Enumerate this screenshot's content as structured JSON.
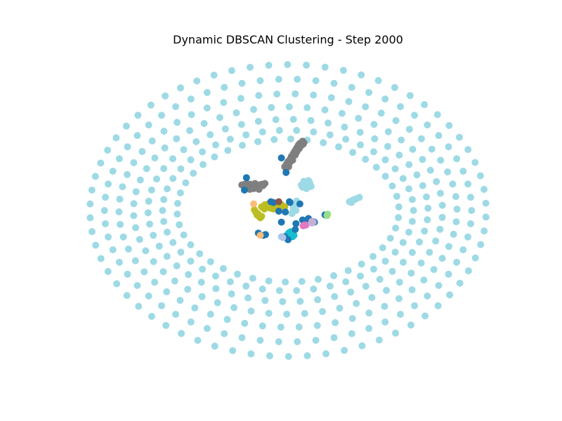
{
  "chart_data": {
    "type": "scatter",
    "title": "Dynamic DBSCAN Clustering - Step 2000",
    "xlabel": "",
    "ylabel": "",
    "axes_visible": false,
    "grid": false,
    "legend": "none",
    "series": [
      {
        "cluster": "background",
        "color": "#9edae5",
        "generator": "rings",
        "rings": [
          {
            "rx": 3.0,
            "ry": 2.0,
            "n": 66,
            "phase": 0.05
          },
          {
            "rx": 2.78,
            "ry": 1.8,
            "n": 62,
            "phase": 0.0
          },
          {
            "rx": 2.56,
            "ry": 1.6,
            "n": 58,
            "phase": 0.12
          },
          {
            "rx": 2.34,
            "ry": 1.42,
            "n": 54,
            "phase": 0.05
          },
          {
            "rx": 2.12,
            "ry": 1.25,
            "n": 50,
            "phase": 0.15
          },
          {
            "rx": 1.9,
            "ry": 1.1,
            "n": 46,
            "phase": 0.0
          },
          {
            "rx": 1.68,
            "ry": 0.98,
            "n": 42,
            "phase": 0.2
          }
        ]
      },
      {
        "cluster": "light-blue-upper",
        "color": "#9edae5",
        "points": [
          [
            0.2,
            0.35
          ],
          [
            0.25,
            0.38
          ],
          [
            0.3,
            0.36
          ],
          [
            0.22,
            0.32
          ],
          [
            0.28,
            0.3
          ],
          [
            0.35,
            0.33
          ],
          [
            0.24,
            0.4
          ],
          [
            0.31,
            0.41
          ],
          [
            0.26,
            0.34
          ],
          [
            0.33,
            0.38
          ]
        ]
      },
      {
        "cluster": "light-blue-mid",
        "color": "#9edae5",
        "points": [
          [
            0.1,
            0.1
          ],
          [
            0.13,
            0.13
          ],
          [
            0.08,
            0.04
          ],
          [
            0.12,
            0.0
          ],
          [
            0.06,
            -0.04
          ],
          [
            0.1,
            0.06
          ],
          [
            0.14,
            0.09
          ],
          [
            0.07,
            -0.02
          ],
          [
            0.11,
            0.03
          ],
          [
            0.09,
            0.08
          ]
        ]
      },
      {
        "cluster": "light-blue-right",
        "color": "#9edae5",
        "points": [
          [
            0.93,
            0.12
          ],
          [
            0.98,
            0.14
          ],
          [
            1.03,
            0.16
          ],
          [
            1.08,
            0.18
          ],
          [
            0.96,
            0.11
          ],
          [
            1.01,
            0.15
          ]
        ]
      },
      {
        "cluster": "gray-diagonal",
        "color": "#7f7f7f",
        "points": [
          [
            -0.05,
            0.6
          ],
          [
            0.0,
            0.67
          ],
          [
            0.05,
            0.74
          ],
          [
            0.1,
            0.81
          ],
          [
            0.14,
            0.87
          ],
          [
            0.18,
            0.92
          ],
          [
            0.22,
            0.95
          ],
          [
            -0.02,
            0.64
          ],
          [
            0.03,
            0.7
          ],
          [
            0.08,
            0.78
          ],
          [
            0.12,
            0.84
          ],
          [
            0.16,
            0.9
          ],
          [
            0.2,
            0.93
          ],
          [
            0.01,
            0.6
          ],
          [
            0.06,
            0.71
          ],
          [
            0.11,
            0.76
          ],
          [
            0.15,
            0.83
          ],
          [
            0.19,
            0.88
          ],
          [
            0.23,
            0.91
          ],
          [
            0.02,
            0.65
          ],
          [
            0.07,
            0.69
          ],
          [
            0.13,
            0.8
          ],
          [
            0.17,
            0.85
          ],
          [
            0.21,
            0.9
          ],
          [
            -0.03,
            0.57
          ],
          [
            0.24,
            0.93
          ]
        ]
      },
      {
        "cluster": "gray-horizontal",
        "color": "#7f7f7f",
        "points": [
          [
            -0.7,
            0.35
          ],
          [
            -0.65,
            0.34
          ],
          [
            -0.6,
            0.33
          ],
          [
            -0.55,
            0.32
          ],
          [
            -0.5,
            0.33
          ],
          [
            -0.45,
            0.35
          ],
          [
            -0.4,
            0.36
          ],
          [
            -0.35,
            0.37
          ],
          [
            -0.62,
            0.37
          ],
          [
            -0.57,
            0.36
          ],
          [
            -0.52,
            0.3
          ],
          [
            -0.47,
            0.31
          ],
          [
            -0.42,
            0.33
          ],
          [
            -0.38,
            0.34
          ],
          [
            -0.58,
            0.29
          ],
          [
            -0.5,
            0.37
          ],
          [
            -0.44,
            0.29
          ],
          [
            -0.66,
            0.36
          ]
        ]
      },
      {
        "cluster": "olive",
        "color": "#bcbd22",
        "points": [
          [
            -0.4,
            0.05
          ],
          [
            -0.35,
            0.08
          ],
          [
            -0.3,
            0.09
          ],
          [
            -0.25,
            0.1
          ],
          [
            -0.2,
            0.08
          ],
          [
            -0.15,
            0.07
          ],
          [
            -0.1,
            0.08
          ],
          [
            -0.05,
            0.05
          ],
          [
            -0.36,
            0.02
          ],
          [
            -0.31,
            0.04
          ],
          [
            -0.26,
            0.03
          ],
          [
            -0.21,
            0.05
          ],
          [
            -0.16,
            0.03
          ],
          [
            -0.11,
            0.04
          ],
          [
            -0.49,
            -0.02
          ],
          [
            -0.51,
            0.01
          ],
          [
            -0.47,
            -0.06
          ],
          [
            -0.44,
            -0.08
          ],
          [
            -0.42,
            -0.1
          ],
          [
            -0.46,
            -0.04
          ],
          [
            -0.4,
            -0.08
          ],
          [
            -0.28,
            0.06
          ],
          [
            -0.18,
            0.1
          ],
          [
            -0.09,
            0.06
          ],
          [
            -0.22,
            0.02
          ]
        ]
      },
      {
        "cluster": "cyan",
        "color": "#17becf",
        "points": [
          [
            0.0,
            -0.32
          ],
          [
            0.05,
            -0.33
          ],
          [
            0.02,
            -0.3
          ],
          [
            0.07,
            -0.36
          ],
          [
            -0.02,
            -0.35
          ],
          [
            0.04,
            -0.29
          ],
          [
            0.09,
            -0.34
          ]
        ]
      },
      {
        "cluster": "blue-noise",
        "color": "#1f77b4",
        "points": [
          [
            -0.1,
            0.72
          ],
          [
            -0.03,
            0.52
          ],
          [
            -0.63,
            0.45
          ],
          [
            -0.66,
            0.28
          ],
          [
            -0.26,
            0.12
          ],
          [
            -0.37,
            -0.34
          ],
          [
            -0.34,
            -0.33
          ],
          [
            -0.45,
            -0.31
          ],
          [
            -0.14,
            -0.01
          ],
          [
            -0.04,
            -0.02
          ],
          [
            0.02,
            0.12
          ],
          [
            0.03,
            0.11
          ],
          [
            0.18,
            0.09
          ],
          [
            -0.1,
            -0.16
          ],
          [
            0.12,
            -0.18
          ],
          [
            0.11,
            -0.26
          ],
          [
            0.22,
            -0.13
          ],
          [
            0.3,
            -0.12
          ],
          [
            0.31,
            -0.11
          ],
          [
            -0.05,
            -0.36
          ],
          [
            0.0,
            -0.4
          ],
          [
            0.37,
            -0.15
          ],
          [
            0.4,
            -0.16
          ],
          [
            0.56,
            -0.06
          ],
          [
            -0.22,
            0.11
          ]
        ]
      },
      {
        "cluster": "orange",
        "color": "#ffbb78",
        "points": [
          [
            -0.52,
            0.09
          ],
          [
            -0.42,
            -0.34
          ]
        ]
      },
      {
        "cluster": "brown",
        "color": "#8c564b",
        "points": [
          [
            -0.14,
            0.12
          ]
        ]
      },
      {
        "cluster": "pink",
        "color": "#e377c2",
        "points": [
          [
            0.25,
            -0.2
          ],
          [
            0.27,
            -0.2
          ],
          [
            0.23,
            -0.21
          ]
        ]
      },
      {
        "cluster": "lavender",
        "color": "#c5b0d5",
        "points": [
          [
            0.36,
            -0.17
          ],
          [
            0.38,
            -0.16
          ],
          [
            0.36,
            -0.15
          ]
        ]
      },
      {
        "cluster": "periwinkle",
        "color": "#aec7e8",
        "points": [
          [
            -0.1,
            -0.36
          ],
          [
            -0.08,
            -0.37
          ]
        ]
      },
      {
        "cluster": "light-green",
        "color": "#98df8a",
        "points": [
          [
            0.59,
            -0.07
          ],
          [
            0.6,
            -0.05
          ]
        ]
      }
    ]
  }
}
